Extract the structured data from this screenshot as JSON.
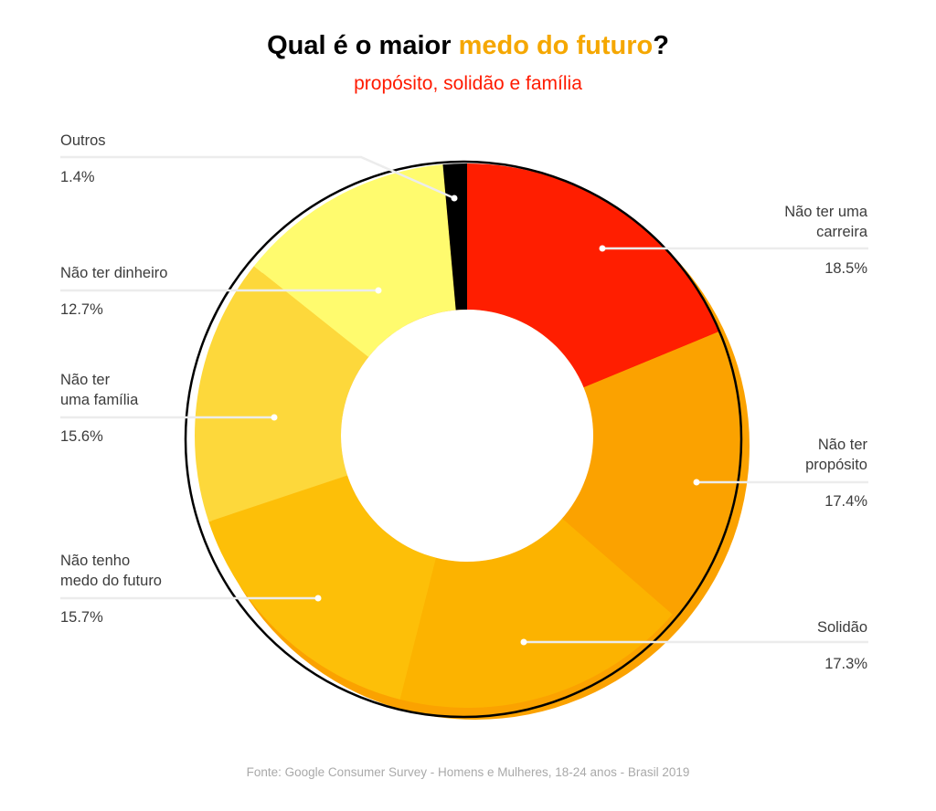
{
  "title": {
    "prefix": "Qual é o maior ",
    "highlight": "medo do futuro",
    "suffix": "?",
    "highlight_color": "#f5a700"
  },
  "subtitle": "propósito, solidão e família",
  "subtitle_color": "#ff1a00",
  "source": "Fonte: Google Consumer Survey - Homens e Mulheres, 18-24 anos - Brasil 2019",
  "chart_data": {
    "type": "pie",
    "variant": "donut",
    "title": "Qual é o maior medo do futuro?",
    "subtitle": "propósito, solidão e família",
    "unit": "%",
    "slices": [
      {
        "label": "Não ter uma carreira",
        "value": 18.5,
        "value_label": "18.5%",
        "color": "#ff1e00"
      },
      {
        "label": "Não ter propósito",
        "value": 17.4,
        "value_label": "17.4%",
        "color": "#fba200"
      },
      {
        "label": "Solidão",
        "value": 17.3,
        "value_label": "17.3%",
        "color": "#fcb300"
      },
      {
        "label": "Não tenho medo do futuro",
        "value": 15.7,
        "value_label": "15.7%",
        "color": "#fdbf08"
      },
      {
        "label": "Não ter uma família",
        "value": 15.6,
        "value_label": "15.6%",
        "color": "#fdd83b"
      },
      {
        "label": "Não ter dinheiro",
        "value": 12.7,
        "value_label": "12.7%",
        "color": "#fffb6e"
      },
      {
        "label": "Outros",
        "value": 1.4,
        "value_label": "1.4%",
        "color": "#000000"
      }
    ],
    "legend": "none (labels beside slices with leader lines)"
  },
  "labels": {
    "carreira": {
      "line1": "Não ter uma",
      "line2": "carreira",
      "pct": "18.5%"
    },
    "proposito": {
      "line1": "Não ter",
      "line2": "propósito",
      "pct": "17.4%"
    },
    "solidao": {
      "line1": "Solidão",
      "pct": "17.3%"
    },
    "medo": {
      "line1": "Não tenho",
      "line2": "medo do futuro",
      "pct": "15.7%"
    },
    "familia": {
      "line1": "Não ter",
      "line2": "uma família",
      "pct": "15.6%"
    },
    "dinheiro": {
      "line1": "Não ter dinheiro",
      "pct": "12.7%"
    },
    "outros": {
      "line1": "Outros",
      "pct": "1.4%"
    }
  }
}
